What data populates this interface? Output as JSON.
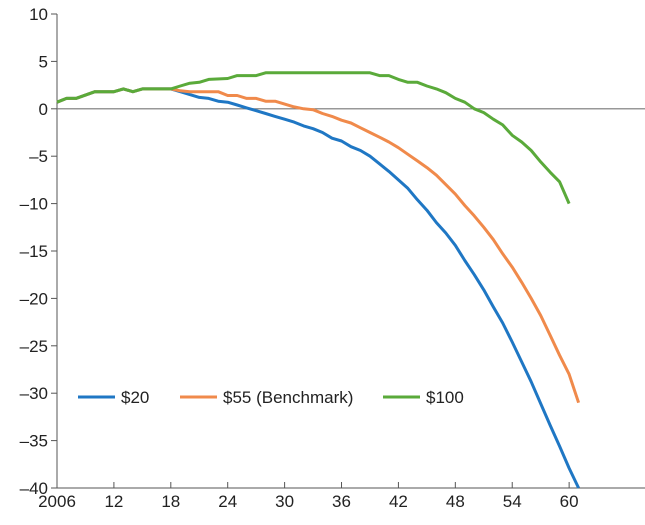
{
  "chart_data": {
    "type": "line",
    "title": "",
    "xlabel": "",
    "ylabel": "",
    "xlim": [
      2006,
      2068
    ],
    "ylim": [
      -40,
      10
    ],
    "x_ticks": [
      {
        "value": 2006,
        "label": "2006"
      },
      {
        "value": 2012,
        "label": "12"
      },
      {
        "value": 2018,
        "label": "18"
      },
      {
        "value": 2024,
        "label": "24"
      },
      {
        "value": 2030,
        "label": "30"
      },
      {
        "value": 2036,
        "label": "36"
      },
      {
        "value": 2042,
        "label": "42"
      },
      {
        "value": 2048,
        "label": "48"
      },
      {
        "value": 2054,
        "label": "54"
      },
      {
        "value": 2060,
        "label": "60"
      }
    ],
    "y_ticks": [
      {
        "value": 10,
        "label": "10"
      },
      {
        "value": 5,
        "label": "5"
      },
      {
        "value": 0,
        "label": "0"
      },
      {
        "value": -5,
        "label": "–5"
      },
      {
        "value": -10,
        "label": "–10"
      },
      {
        "value": -15,
        "label": "–15"
      },
      {
        "value": -20,
        "label": "–20"
      },
      {
        "value": -25,
        "label": "–25"
      },
      {
        "value": -30,
        "label": "–30"
      },
      {
        "value": -35,
        "label": "–35"
      },
      {
        "value": -40,
        "label": "–40"
      }
    ],
    "zero_line": true,
    "grid": false,
    "legend_position": "lower-left",
    "series": [
      {
        "name": "$20",
        "color": "#1f77c4",
        "points": [
          [
            2006,
            0.7
          ],
          [
            2007,
            1.1
          ],
          [
            2008,
            1.1
          ],
          [
            2010,
            1.8
          ],
          [
            2012,
            1.8
          ],
          [
            2013,
            2.1
          ],
          [
            2014,
            1.8
          ],
          [
            2015,
            2.1
          ],
          [
            2018,
            2.1
          ],
          [
            2019,
            1.8
          ],
          [
            2020,
            1.5
          ],
          [
            2021,
            1.2
          ],
          [
            2022,
            1.1
          ],
          [
            2023,
            0.8
          ],
          [
            2024,
            0.7
          ],
          [
            2025,
            0.4
          ],
          [
            2026,
            0.1
          ],
          [
            2027,
            -0.2
          ],
          [
            2028,
            -0.5
          ],
          [
            2029,
            -0.8
          ],
          [
            2030,
            -1.1
          ],
          [
            2031,
            -1.4
          ],
          [
            2032,
            -1.8
          ],
          [
            2033,
            -2.1
          ],
          [
            2034,
            -2.5
          ],
          [
            2035,
            -3.1
          ],
          [
            2036,
            -3.4
          ],
          [
            2037,
            -4.0
          ],
          [
            2038,
            -4.4
          ],
          [
            2039,
            -5.0
          ],
          [
            2040,
            -5.8
          ],
          [
            2041,
            -6.6
          ],
          [
            2042,
            -7.5
          ],
          [
            2043,
            -8.4
          ],
          [
            2044,
            -9.6
          ],
          [
            2045,
            -10.7
          ],
          [
            2046,
            -12.0
          ],
          [
            2047,
            -13.1
          ],
          [
            2048,
            -14.4
          ],
          [
            2049,
            -16.0
          ],
          [
            2050,
            -17.5
          ],
          [
            2051,
            -19.1
          ],
          [
            2052,
            -20.9
          ],
          [
            2053,
            -22.6
          ],
          [
            2054,
            -24.6
          ],
          [
            2055,
            -26.7
          ],
          [
            2056,
            -28.8
          ],
          [
            2057,
            -31.1
          ],
          [
            2058,
            -33.4
          ],
          [
            2059,
            -35.6
          ],
          [
            2060,
            -37.9
          ],
          [
            2061,
            -40.0
          ]
        ]
      },
      {
        "name": "$55 (Benchmark)",
        "color": "#f08a4b",
        "points": [
          [
            2006,
            0.7
          ],
          [
            2007,
            1.1
          ],
          [
            2008,
            1.1
          ],
          [
            2010,
            1.8
          ],
          [
            2012,
            1.8
          ],
          [
            2013,
            2.1
          ],
          [
            2014,
            1.8
          ],
          [
            2015,
            2.1
          ],
          [
            2018,
            2.1
          ],
          [
            2019,
            1.9
          ],
          [
            2020,
            1.8
          ],
          [
            2023,
            1.8
          ],
          [
            2024,
            1.4
          ],
          [
            2025,
            1.4
          ],
          [
            2026,
            1.1
          ],
          [
            2027,
            1.1
          ],
          [
            2028,
            0.8
          ],
          [
            2029,
            0.8
          ],
          [
            2030,
            0.5
          ],
          [
            2031,
            0.2
          ],
          [
            2032,
            0.0
          ],
          [
            2033,
            -0.1
          ],
          [
            2034,
            -0.5
          ],
          [
            2035,
            -0.8
          ],
          [
            2036,
            -1.2
          ],
          [
            2037,
            -1.5
          ],
          [
            2038,
            -2.0
          ],
          [
            2039,
            -2.5
          ],
          [
            2040,
            -3.0
          ],
          [
            2041,
            -3.5
          ],
          [
            2042,
            -4.1
          ],
          [
            2043,
            -4.8
          ],
          [
            2044,
            -5.5
          ],
          [
            2045,
            -6.2
          ],
          [
            2046,
            -7.0
          ],
          [
            2047,
            -8.0
          ],
          [
            2048,
            -9.0
          ],
          [
            2049,
            -10.2
          ],
          [
            2050,
            -11.3
          ],
          [
            2051,
            -12.5
          ],
          [
            2052,
            -13.8
          ],
          [
            2053,
            -15.3
          ],
          [
            2054,
            -16.7
          ],
          [
            2055,
            -18.3
          ],
          [
            2056,
            -20.0
          ],
          [
            2057,
            -21.8
          ],
          [
            2058,
            -23.9
          ],
          [
            2059,
            -26.0
          ],
          [
            2060,
            -28.0
          ],
          [
            2061,
            -31.0
          ]
        ]
      },
      {
        "name": "$100",
        "color": "#5aaa3a",
        "points": [
          [
            2006,
            0.7
          ],
          [
            2007,
            1.1
          ],
          [
            2008,
            1.1
          ],
          [
            2010,
            1.8
          ],
          [
            2012,
            1.8
          ],
          [
            2013,
            2.1
          ],
          [
            2014,
            1.8
          ],
          [
            2015,
            2.1
          ],
          [
            2018,
            2.1
          ],
          [
            2019,
            2.4
          ],
          [
            2020,
            2.7
          ],
          [
            2021,
            2.8
          ],
          [
            2022,
            3.1
          ],
          [
            2024,
            3.2
          ],
          [
            2025,
            3.5
          ],
          [
            2027,
            3.5
          ],
          [
            2028,
            3.8
          ],
          [
            2038,
            3.8
          ],
          [
            2039,
            3.8
          ],
          [
            2040,
            3.5
          ],
          [
            2041,
            3.5
          ],
          [
            2042,
            3.1
          ],
          [
            2043,
            2.8
          ],
          [
            2044,
            2.8
          ],
          [
            2045,
            2.4
          ],
          [
            2046,
            2.1
          ],
          [
            2047,
            1.7
          ],
          [
            2048,
            1.1
          ],
          [
            2049,
            0.7
          ],
          [
            2050,
            0.0
          ],
          [
            2051,
            -0.4
          ],
          [
            2052,
            -1.1
          ],
          [
            2053,
            -1.7
          ],
          [
            2054,
            -2.8
          ],
          [
            2055,
            -3.5
          ],
          [
            2056,
            -4.4
          ],
          [
            2057,
            -5.6
          ],
          [
            2058,
            -6.7
          ],
          [
            2059,
            -7.7
          ],
          [
            2060,
            -10.0
          ]
        ]
      }
    ]
  }
}
